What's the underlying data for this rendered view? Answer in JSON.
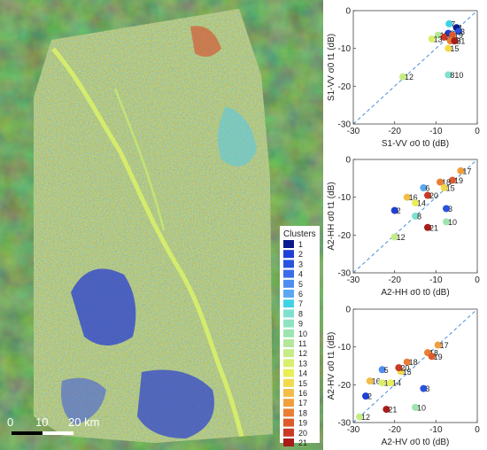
{
  "map": {
    "legend_title": "Clusters",
    "cluster_colors": [
      "#0a1a8c",
      "#1f3fd6",
      "#2a52e0",
      "#3a6bea",
      "#4f8cf0",
      "#5aa8f2",
      "#3fd2e6",
      "#7fe0d0",
      "#8fe3c2",
      "#9de4b0",
      "#b3e89b",
      "#c6ec85",
      "#d9ef6c",
      "#e9ee55",
      "#f2d94a",
      "#f3be45",
      "#f09f3c",
      "#e97e34",
      "#dc5a2c",
      "#c93a24",
      "#a81d1a"
    ],
    "clusters": [
      "1",
      "2",
      "3",
      "4",
      "5",
      "6",
      "7",
      "8",
      "9",
      "10",
      "11",
      "12",
      "13",
      "14",
      "15",
      "16",
      "17",
      "18",
      "19",
      "20",
      "21"
    ],
    "scale_labels": [
      "0",
      "10",
      "20 km"
    ]
  },
  "chart_data": [
    {
      "type": "scatter",
      "xlabel": "S1-VV σ0 t0 (dB)",
      "ylabel": "S1-VV σ0 t1 (dB)",
      "xlim": [
        -30,
        0
      ],
      "ylim": [
        -30,
        0
      ],
      "xticks": [
        "-30",
        "-20",
        "-10",
        "0"
      ],
      "yticks": [
        "-30",
        "-20",
        "-10",
        "0"
      ],
      "identity_line": true,
      "points": [
        {
          "label": "7",
          "x": -6.8,
          "y": -3.5
        },
        {
          "label": "1",
          "x": -5.0,
          "y": -4.5
        },
        {
          "label": "3",
          "x": -4.5,
          "y": -5.5
        },
        {
          "label": "2",
          "x": -7.0,
          "y": -6.0
        },
        {
          "label": "11",
          "x": -9.5,
          "y": -6.5
        },
        {
          "label": "20",
          "x": -8.0,
          "y": -7.0
        },
        {
          "label": "19",
          "x": -6.0,
          "y": -6.5
        },
        {
          "label": "13",
          "x": -11.0,
          "y": -7.5
        },
        {
          "label": "18",
          "x": -6.5,
          "y": -8.0
        },
        {
          "label": "21",
          "x": -5.5,
          "y": -8.0
        },
        {
          "label": "15",
          "x": -7.0,
          "y": -10.0
        },
        {
          "label": "12",
          "x": -18.0,
          "y": -17.5
        },
        {
          "label": "810",
          "x": -7.0,
          "y": -17.0
        }
      ]
    },
    {
      "type": "scatter",
      "xlabel": "A2-HH σ0 t0 (dB)",
      "ylabel": "A2-HH σ0 t1 (dB)",
      "xlim": [
        -30,
        0
      ],
      "ylim": [
        -30,
        0
      ],
      "xticks": [
        "-30",
        "-20",
        "-10",
        "0"
      ],
      "yticks": [
        "-30",
        "-20",
        "-10",
        "0"
      ],
      "identity_line": true,
      "points": [
        {
          "label": "17",
          "x": -4.0,
          "y": -3.0
        },
        {
          "label": "19",
          "x": -6.0,
          "y": -5.5
        },
        {
          "label": "18",
          "x": -9.0,
          "y": -6.0
        },
        {
          "label": "15",
          "x": -8.0,
          "y": -7.5
        },
        {
          "label": "6",
          "x": -13.0,
          "y": -7.5
        },
        {
          "label": "16",
          "x": -17.0,
          "y": -10.0
        },
        {
          "label": "20",
          "x": -12.0,
          "y": -9.5
        },
        {
          "label": "14",
          "x": -15.0,
          "y": -11.5
        },
        {
          "label": "2",
          "x": -20.0,
          "y": -13.5
        },
        {
          "label": "3",
          "x": -7.5,
          "y": -13.0
        },
        {
          "label": "8",
          "x": -15.0,
          "y": -15.0
        },
        {
          "label": "10",
          "x": -7.5,
          "y": -16.5
        },
        {
          "label": "21",
          "x": -12.0,
          "y": -18.0
        },
        {
          "label": "12",
          "x": -20.0,
          "y": -20.5
        }
      ]
    },
    {
      "type": "scatter",
      "xlabel": "A2-HV σ0 t0 (dB)",
      "ylabel": "A2-HV σ0 t1 (dB)",
      "xlim": [
        -30,
        0
      ],
      "ylim": [
        -30,
        0
      ],
      "xticks": [
        "-30",
        "-20",
        "-10",
        "0"
      ],
      "yticks": [
        "-30",
        "-20",
        "-10",
        "0"
      ],
      "identity_line": true,
      "points": [
        {
          "label": "17",
          "x": -9.5,
          "y": -9.5
        },
        {
          "label": "18",
          "x": -12.0,
          "y": -11.5
        },
        {
          "label": "19",
          "x": -11.0,
          "y": -12.5
        },
        {
          "label": "18",
          "x": -17.0,
          "y": -14.0
        },
        {
          "label": "15",
          "x": -18.5,
          "y": -16.5
        },
        {
          "label": "5",
          "x": -23.0,
          "y": -16.0
        },
        {
          "label": "20",
          "x": -19.0,
          "y": -15.5
        },
        {
          "label": "16",
          "x": -26.0,
          "y": -19.0
        },
        {
          "label": "13",
          "x": -23.0,
          "y": -19.5
        },
        {
          "label": "14",
          "x": -21.0,
          "y": -19.5
        },
        {
          "label": "3",
          "x": -13.0,
          "y": -21.0
        },
        {
          "label": "2",
          "x": -27.0,
          "y": -23.0
        },
        {
          "label": "21",
          "x": -22.0,
          "y": -26.5
        },
        {
          "label": "10",
          "x": -15.0,
          "y": -26.0
        },
        {
          "label": "12",
          "x": -28.5,
          "y": -28.5
        }
      ]
    }
  ]
}
